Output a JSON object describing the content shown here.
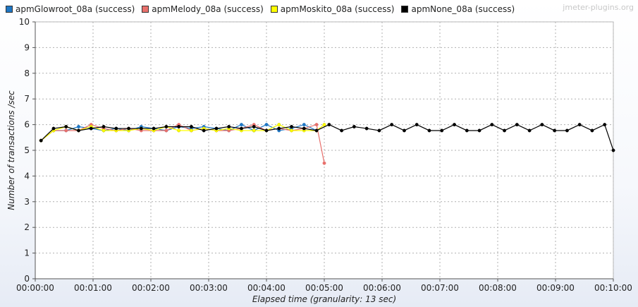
{
  "watermark": "jmeter-plugins.org",
  "chart_data": {
    "type": "line",
    "xlabel": "Elapsed time (granularity: 13 sec)",
    "ylabel": "Number of transactions /sec",
    "ylim": [
      0,
      10
    ],
    "xlim": [
      "00:00:00",
      "00:10:00"
    ],
    "x_ticks": [
      "00:00:00",
      "00:01:00",
      "00:02:00",
      "00:03:00",
      "00:04:00",
      "00:05:00",
      "00:06:00",
      "00:07:00",
      "00:08:00",
      "00:09:00",
      "00:10:00"
    ],
    "y_ticks": [
      "0",
      "1",
      "2",
      "3",
      "4",
      "5",
      "6",
      "7",
      "8",
      "9",
      "10"
    ],
    "grid": true,
    "legend_position": "top-left",
    "series": [
      {
        "name": "apmGlowroot_08a (success)",
        "color": "#1f77c4",
        "points": [
          [
            "00:00:06",
            5.38
          ],
          [
            "00:00:19",
            5.77
          ],
          [
            "00:00:32",
            5.77
          ],
          [
            "00:00:45",
            5.92
          ],
          [
            "00:00:58",
            5.85
          ],
          [
            "00:01:11",
            5.77
          ],
          [
            "00:01:24",
            5.85
          ],
          [
            "00:01:37",
            5.77
          ],
          [
            "00:01:50",
            5.92
          ],
          [
            "00:02:03",
            5.85
          ],
          [
            "00:02:16",
            5.77
          ],
          [
            "00:02:29",
            5.92
          ],
          [
            "00:02:42",
            5.85
          ],
          [
            "00:02:55",
            5.92
          ],
          [
            "00:03:08",
            5.85
          ],
          [
            "00:03:21",
            5.77
          ],
          [
            "00:03:34",
            6.0
          ],
          [
            "00:03:47",
            5.77
          ],
          [
            "00:04:00",
            6.0
          ],
          [
            "00:04:13",
            5.77
          ],
          [
            "00:04:26",
            5.85
          ],
          [
            "00:04:39",
            6.0
          ],
          [
            "00:04:52",
            5.77
          ]
        ]
      },
      {
        "name": "apmMelody_08a (success)",
        "color": "#e8706c",
        "points": [
          [
            "00:00:06",
            5.38
          ],
          [
            "00:00:19",
            5.77
          ],
          [
            "00:00:32",
            5.77
          ],
          [
            "00:00:45",
            5.77
          ],
          [
            "00:00:58",
            6.0
          ],
          [
            "00:01:11",
            5.85
          ],
          [
            "00:01:24",
            5.77
          ],
          [
            "00:01:37",
            5.85
          ],
          [
            "00:01:50",
            5.77
          ],
          [
            "00:02:03",
            5.77
          ],
          [
            "00:02:16",
            5.77
          ],
          [
            "00:02:29",
            6.0
          ],
          [
            "00:02:42",
            5.77
          ],
          [
            "00:02:55",
            5.85
          ],
          [
            "00:03:08",
            5.77
          ],
          [
            "00:03:21",
            5.77
          ],
          [
            "00:03:34",
            5.85
          ],
          [
            "00:03:47",
            6.0
          ],
          [
            "00:04:00",
            5.77
          ],
          [
            "00:04:13",
            5.85
          ],
          [
            "00:04:26",
            5.77
          ],
          [
            "00:04:39",
            5.85
          ],
          [
            "00:04:52",
            6.0
          ],
          [
            "00:05:00",
            4.5
          ]
        ]
      },
      {
        "name": "apmMoskito_08a (success)",
        "color": "#ffff00",
        "points": [
          [
            "00:00:06",
            5.38
          ],
          [
            "00:00:19",
            5.77
          ],
          [
            "00:00:32",
            5.92
          ],
          [
            "00:00:45",
            5.77
          ],
          [
            "00:00:58",
            5.92
          ],
          [
            "00:01:11",
            5.77
          ],
          [
            "00:01:24",
            5.77
          ],
          [
            "00:01:37",
            5.77
          ],
          [
            "00:01:50",
            5.85
          ],
          [
            "00:02:03",
            5.77
          ],
          [
            "00:02:16",
            5.92
          ],
          [
            "00:02:29",
            5.77
          ],
          [
            "00:02:42",
            5.77
          ],
          [
            "00:02:55",
            5.85
          ],
          [
            "00:03:08",
            5.77
          ],
          [
            "00:03:21",
            5.85
          ],
          [
            "00:03:34",
            5.77
          ],
          [
            "00:03:47",
            5.77
          ],
          [
            "00:04:00",
            5.77
          ],
          [
            "00:04:13",
            6.0
          ],
          [
            "00:04:26",
            5.77
          ],
          [
            "00:04:39",
            5.77
          ],
          [
            "00:04:52",
            5.77
          ],
          [
            "00:05:00",
            6.0
          ]
        ]
      },
      {
        "name": "apmNone_08a (success)",
        "color": "#000000",
        "points": [
          [
            "00:00:06",
            5.38
          ],
          [
            "00:00:19",
            5.85
          ],
          [
            "00:00:32",
            5.92
          ],
          [
            "00:00:45",
            5.77
          ],
          [
            "00:00:58",
            5.85
          ],
          [
            "00:01:11",
            5.92
          ],
          [
            "00:01:24",
            5.85
          ],
          [
            "00:01:37",
            5.85
          ],
          [
            "00:01:50",
            5.85
          ],
          [
            "00:02:03",
            5.85
          ],
          [
            "00:02:16",
            5.92
          ],
          [
            "00:02:29",
            5.92
          ],
          [
            "00:02:42",
            5.92
          ],
          [
            "00:02:55",
            5.77
          ],
          [
            "00:03:08",
            5.85
          ],
          [
            "00:03:21",
            5.92
          ],
          [
            "00:03:34",
            5.85
          ],
          [
            "00:03:47",
            5.92
          ],
          [
            "00:04:00",
            5.77
          ],
          [
            "00:04:13",
            5.85
          ],
          [
            "00:04:26",
            5.92
          ],
          [
            "00:04:39",
            5.85
          ],
          [
            "00:04:52",
            5.77
          ],
          [
            "00:05:05",
            6.0
          ],
          [
            "00:05:18",
            5.77
          ],
          [
            "00:05:31",
            5.92
          ],
          [
            "00:05:44",
            5.85
          ],
          [
            "00:05:57",
            5.77
          ],
          [
            "00:06:10",
            6.0
          ],
          [
            "00:06:23",
            5.77
          ],
          [
            "00:06:36",
            6.0
          ],
          [
            "00:06:49",
            5.77
          ],
          [
            "00:07:02",
            5.77
          ],
          [
            "00:07:15",
            6.0
          ],
          [
            "00:07:28",
            5.77
          ],
          [
            "00:07:41",
            5.77
          ],
          [
            "00:07:54",
            6.0
          ],
          [
            "00:08:07",
            5.77
          ],
          [
            "00:08:20",
            6.0
          ],
          [
            "00:08:33",
            5.77
          ],
          [
            "00:08:46",
            6.0
          ],
          [
            "00:08:59",
            5.77
          ],
          [
            "00:09:12",
            5.77
          ],
          [
            "00:09:25",
            6.0
          ],
          [
            "00:09:38",
            5.77
          ],
          [
            "00:09:51",
            6.0
          ],
          [
            "00:10:00",
            5.0
          ]
        ]
      }
    ]
  }
}
